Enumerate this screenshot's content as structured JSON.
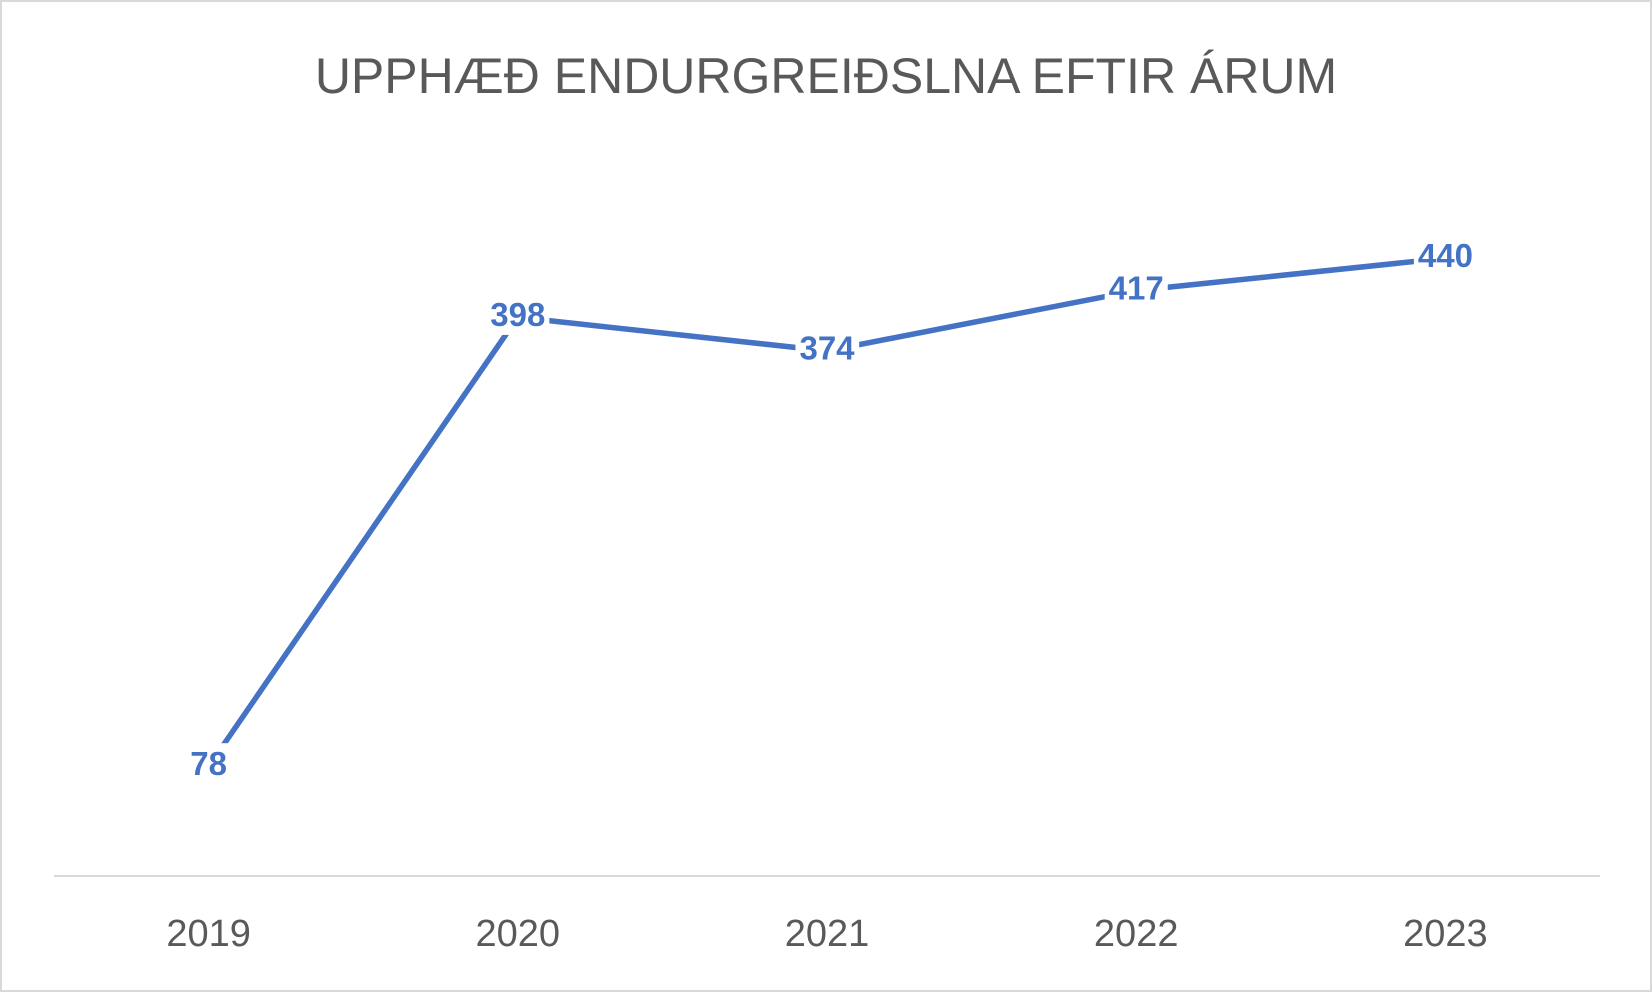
{
  "chart_data": {
    "type": "line",
    "title": "UPPHÆÐ ENDURGREIÐSLNA EFTIR ÁRUM",
    "categories": [
      "2019",
      "2020",
      "2021",
      "2022",
      "2023"
    ],
    "values": [
      78,
      398,
      374,
      417,
      440
    ],
    "color": "#4472c4",
    "ylim": [
      0,
      500
    ],
    "data_labels": true
  }
}
